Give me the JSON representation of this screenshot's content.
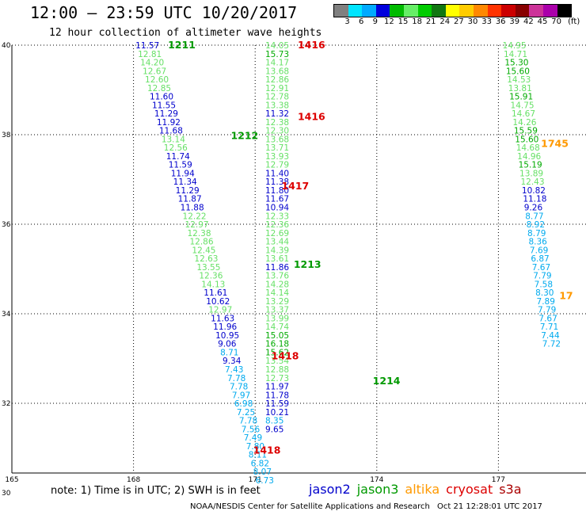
{
  "header": {
    "title": "12:00 – 23:59 UTC 10/20/2017",
    "subtitle": "12 hour collection of altimeter wave heights"
  },
  "scale": {
    "unit": "(ft)",
    "colors": [
      "#808080",
      "#00e5ff",
      "#00aaff",
      "#0000dd",
      "#00bb00",
      "#66ee66",
      "#00cc00",
      "#117711",
      "#ffff00",
      "#ffcc00",
      "#ff8800",
      "#ff3300",
      "#cc0000",
      "#880000",
      "#cc3399",
      "#aa00aa",
      "#000000"
    ],
    "ticks": [
      {
        "label": "3",
        "pos": 1
      },
      {
        "label": "6",
        "pos": 2
      },
      {
        "label": "9",
        "pos": 3
      },
      {
        "label": "12",
        "pos": 4
      },
      {
        "label": "15",
        "pos": 5
      },
      {
        "label": "18",
        "pos": 6
      },
      {
        "label": "21",
        "pos": 7
      },
      {
        "label": "24",
        "pos": 8
      },
      {
        "label": "27",
        "pos": 9
      },
      {
        "label": "30",
        "pos": 10
      },
      {
        "label": "33",
        "pos": 11
      },
      {
        "label": "36",
        "pos": 12
      },
      {
        "label": "39",
        "pos": 13
      },
      {
        "label": "42",
        "pos": 14
      },
      {
        "label": "45",
        "pos": 15
      },
      {
        "label": "70",
        "pos": 16
      }
    ]
  },
  "note": "note:  1) Time is in UTC;  2) SWH is in feet",
  "legend": [
    {
      "name": "jason2",
      "color": "#0000cc"
    },
    {
      "name": "jason3",
      "color": "#009900"
    },
    {
      "name": "altika",
      "color": "#ff9900"
    },
    {
      "name": "cryosat",
      "color": "#dd0000"
    },
    {
      "name": "s3a",
      "color": "#aa0000"
    }
  ],
  "credit": "NOAA/NESDIS Center for Satellite Applications and Research",
  "timestamp": "Oct 21 12:28:01 UTC 2017",
  "chart_data": {
    "type": "scatter",
    "xlim": [
      165,
      178.5
    ],
    "ylim": [
      30,
      40
    ],
    "x_ticks": [
      165,
      168,
      171,
      174,
      177
    ],
    "y_ticks": [
      30,
      32,
      34,
      36,
      38,
      40
    ],
    "x_tick_labels": [
      "165",
      "168",
      "171",
      "174",
      "177"
    ],
    "y_tick_labels": [
      "30",
      "32",
      "34",
      "36",
      "38",
      "40"
    ],
    "grid": true,
    "color_scale": [
      3,
      6,
      9,
      12,
      15,
      18,
      21,
      24,
      27,
      30,
      33,
      36,
      39,
      42,
      45,
      70
    ],
    "labels": [
      {
        "text": "1211",
        "x": 168.85,
        "y": 40.0,
        "color": "#009900"
      },
      {
        "text": "1416",
        "x": 172.05,
        "y": 40.0,
        "color": "#dd0000"
      },
      {
        "text": "1416",
        "x": 172.05,
        "y": 38.4,
        "color": "#dd0000"
      },
      {
        "text": "1212",
        "x": 170.4,
        "y": 37.97,
        "color": "#009900"
      },
      {
        "text": "1745",
        "x": 178.05,
        "y": 37.8,
        "color": "#ff9900"
      },
      {
        "text": "1417",
        "x": 171.65,
        "y": 36.85,
        "color": "#dd0000"
      },
      {
        "text": "1213",
        "x": 171.95,
        "y": 35.1,
        "color": "#009900"
      },
      {
        "text": "17",
        "x": 178.5,
        "y": 34.4,
        "color": "#ff9900"
      },
      {
        "text": "1418",
        "x": 171.4,
        "y": 33.05,
        "color": "#dd0000"
      },
      {
        "text": "1214",
        "x": 173.9,
        "y": 32.5,
        "color": "#009900"
      },
      {
        "text": "1418",
        "x": 170.95,
        "y": 30.95,
        "color": "#dd0000"
      }
    ],
    "series": [
      {
        "track": "jason2-1211",
        "x0": 168.05,
        "y0": 40.0,
        "dx": 0.058,
        "dy": -0.1905,
        "values": [
          11.57,
          12.81,
          14.2,
          12.67,
          12.6,
          12.85,
          11.6,
          11.55,
          11.29,
          11.92,
          11.68,
          13.14,
          12.56,
          11.74,
          11.59,
          11.94,
          11.34,
          11.29,
          11.87,
          11.88,
          12.22,
          12.97,
          12.38,
          12.86,
          12.45,
          12.63,
          13.55,
          12.36,
          14.13,
          11.61,
          10.62,
          12.97,
          11.63,
          11.96,
          10.95,
          9.06,
          8.71,
          9.34,
          7.43,
          7.78,
          7.78,
          7.97,
          6.98,
          7.25,
          7.78,
          7.56,
          7.49,
          7.8,
          8.11,
          6.82,
          8.07,
          6.73
        ]
      },
      {
        "track": "jason3-1416",
        "x0": 171.25,
        "y0": 40.0,
        "dx": 0.0,
        "dy": -0.1905,
        "values": [
          14.05,
          15.73,
          14.17,
          13.68,
          12.86,
          12.91,
          12.78,
          13.38,
          11.32,
          12.38,
          12.3,
          13.68,
          13.71,
          13.93,
          12.79,
          11.4,
          11.38,
          11.8,
          11.67,
          10.94,
          12.33,
          12.36,
          12.69,
          13.44,
          14.39,
          13.61,
          11.86,
          13.76,
          14.28,
          14.14,
          13.29,
          13.37,
          13.99,
          14.74,
          15.05,
          16.18,
          15.62,
          13.54,
          12.88,
          12.73,
          11.97,
          11.78,
          11.59,
          10.21,
          8.35,
          9.65
        ]
      },
      {
        "track": "altika-1745",
        "x0": 177.1,
        "y0": 40.0,
        "dx": 0.028,
        "dy": -0.1905,
        "values": [
          14.95,
          14.71,
          15.3,
          15.6,
          14.53,
          13.81,
          15.91,
          14.75,
          14.67,
          14.26,
          15.59,
          15.6,
          14.68,
          14.96,
          15.19,
          13.89,
          12.43,
          10.82,
          11.18,
          9.26,
          8.77,
          8.92,
          8.79,
          8.36,
          7.69,
          6.87,
          7.67,
          7.79,
          7.58,
          8.3,
          7.89,
          7.79,
          7.67,
          7.71,
          7.44,
          7.72
        ]
      }
    ]
  }
}
